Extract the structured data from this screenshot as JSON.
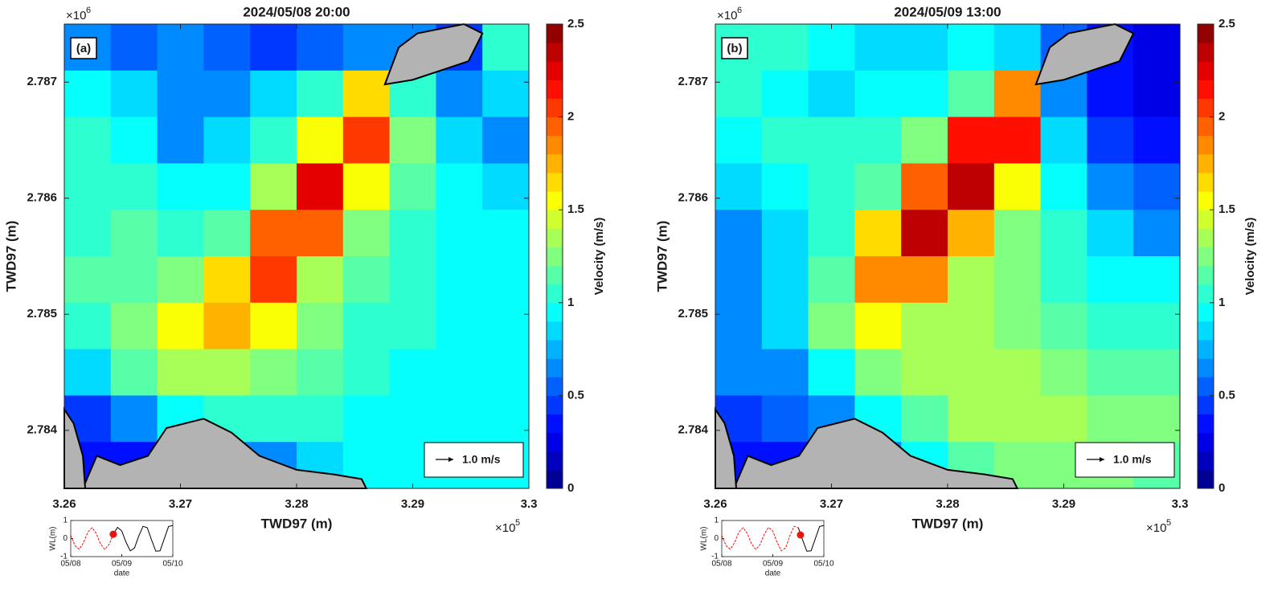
{
  "chart_data": [
    {
      "type": "heatmap",
      "title": "2024/05/08 20:00",
      "panel_label": "(a)",
      "x_label": "TWD97 (m)",
      "y_label": "TWD97 (m)",
      "xlim": [
        3.26,
        3.3
      ],
      "ylim": [
        2.7835,
        2.7875
      ],
      "xticks": [
        3.26,
        3.27,
        3.28,
        3.29,
        3.3
      ],
      "yticks": [
        2.784,
        2.785,
        2.786,
        2.787
      ],
      "x_multiplier": {
        "base": "×10",
        "exponent": "5"
      },
      "y_multiplier": {
        "base": "×10",
        "exponent": "6"
      },
      "colormap": "jet",
      "color_levels": 25,
      "land_color": "#b3b3b3",
      "z": [
        [
          0.6,
          0.5,
          0.6,
          0.5,
          0.4,
          0.5,
          0.7,
          0.6,
          0.4,
          1.0
        ],
        [
          0.9,
          0.8,
          0.6,
          0.7,
          0.8,
          1.0,
          1.6,
          1.0,
          0.6,
          0.8
        ],
        [
          1.0,
          0.9,
          0.7,
          0.8,
          1.0,
          1.5,
          2.0,
          1.2,
          0.8,
          0.7
        ],
        [
          1.0,
          1.0,
          0.9,
          0.9,
          1.3,
          2.2,
          1.5,
          1.1,
          0.9,
          0.8
        ],
        [
          1.0,
          1.1,
          1.0,
          1.1,
          1.9,
          1.9,
          1.2,
          1.0,
          0.9,
          0.9
        ],
        [
          1.1,
          1.1,
          1.2,
          1.6,
          2.0,
          1.4,
          1.1,
          1.0,
          0.9,
          0.9
        ],
        [
          1.0,
          1.2,
          1.5,
          1.7,
          1.5,
          1.2,
          1.0,
          1.0,
          0.9,
          0.9
        ],
        [
          0.8,
          1.1,
          1.3,
          1.3,
          1.2,
          1.1,
          1.0,
          0.9,
          0.9,
          0.9
        ],
        [
          0.4,
          0.7,
          0.9,
          1.0,
          1.0,
          1.0,
          0.9,
          0.9,
          0.9,
          0.9
        ],
        [
          0.3,
          0.3,
          0.5,
          0.6,
          0.7,
          0.8,
          0.9,
          0.9,
          0.9,
          0.9
        ]
      ],
      "colorbar": {
        "label": "Velocity (m/s)",
        "lim": [
          0,
          2.5
        ],
        "ticks": [
          0,
          0.5,
          1,
          1.5,
          2,
          2.5
        ]
      },
      "quiver_key": {
        "value": 1.0,
        "label": "1.0 m/s"
      },
      "inset": {
        "type": "line",
        "x_label": "date",
        "y_label": "WL(m)",
        "xlim": [
          0,
          2
        ],
        "ylim": [
          -1,
          1
        ],
        "xticks": [
          {
            "value": 0,
            "label": "05/08"
          },
          {
            "value": 1,
            "label": "05/09"
          },
          {
            "value": 2,
            "label": "05/10"
          }
        ],
        "yticks": [
          -1,
          0,
          1
        ],
        "x": [
          0,
          0.083,
          0.167,
          0.25,
          0.333,
          0.417,
          0.5,
          0.583,
          0.667,
          0.75,
          0.833,
          0.917,
          1,
          1.083,
          1.167,
          1.25,
          1.333,
          1.417,
          1.5,
          1.583,
          1.667,
          1.75,
          1.833,
          1.917,
          2
        ],
        "series": [
          {
            "color": "#e8140f",
            "values": [
              0.18,
              -0.39,
              -0.59,
              -0.23,
              0.35,
              0.6,
              0.29,
              -0.29,
              -0.6,
              -0.34,
              0.24,
              null,
              null,
              null,
              null,
              null,
              null,
              null,
              null,
              null,
              null,
              null,
              null,
              null,
              null
            ]
          },
          {
            "color": "#000000",
            "values": [
              null,
              null,
              null,
              null,
              null,
              null,
              null,
              null,
              null,
              null,
              0.24,
              0.62,
              0.42,
              -0.2,
              -0.68,
              -0.52,
              0.14,
              0.68,
              0.6,
              -0.07,
              -0.7,
              -0.68,
              -0.01,
              0.67,
              0.72
            ]
          }
        ],
        "marker": {
          "x": 0.833,
          "y": 0.24,
          "color": "#e8140f"
        }
      }
    },
    {
      "type": "heatmap",
      "title": "2024/05/09 13:00",
      "panel_label": "(b)",
      "x_label": "TWD97 (m)",
      "y_label": "TWD97 (m)",
      "xlim": [
        3.26,
        3.3
      ],
      "ylim": [
        2.7835,
        2.7875
      ],
      "xticks": [
        3.26,
        3.27,
        3.28,
        3.29,
        3.3
      ],
      "yticks": [
        2.784,
        2.785,
        2.786,
        2.787
      ],
      "x_multiplier": {
        "base": "×10",
        "exponent": "5"
      },
      "y_multiplier": {
        "base": "×10",
        "exponent": "6"
      },
      "colormap": "jet",
      "color_levels": 25,
      "land_color": "#b3b3b3",
      "z": [
        [
          1.0,
          1.0,
          0.9,
          0.8,
          0.8,
          0.9,
          0.8,
          0.5,
          0.3,
          0.2
        ],
        [
          1.0,
          0.9,
          0.8,
          0.9,
          0.9,
          1.1,
          1.8,
          0.6,
          0.3,
          0.2
        ],
        [
          0.9,
          1.0,
          1.0,
          1.0,
          1.2,
          2.1,
          2.1,
          0.8,
          0.4,
          0.3
        ],
        [
          0.8,
          0.9,
          1.0,
          1.1,
          1.9,
          2.3,
          1.5,
          0.9,
          0.6,
          0.5
        ],
        [
          0.7,
          0.8,
          1.0,
          1.6,
          2.3,
          1.7,
          1.2,
          1.0,
          0.8,
          0.7
        ],
        [
          0.6,
          0.8,
          1.1,
          1.8,
          1.8,
          1.4,
          1.2,
          1.0,
          0.9,
          0.9
        ],
        [
          0.6,
          0.8,
          1.2,
          1.5,
          1.4,
          1.3,
          1.2,
          1.1,
          1.0,
          1.0
        ],
        [
          0.6,
          0.7,
          0.9,
          1.2,
          1.3,
          1.3,
          1.3,
          1.2,
          1.1,
          1.1
        ],
        [
          0.4,
          0.5,
          0.7,
          0.9,
          1.1,
          1.3,
          1.3,
          1.3,
          1.2,
          1.2
        ],
        [
          0.3,
          0.3,
          0.5,
          0.6,
          0.9,
          1.1,
          1.2,
          1.2,
          1.2,
          1.1
        ]
      ],
      "colorbar": {
        "label": "Velocity (m/s)",
        "lim": [
          0,
          2.5
        ],
        "ticks": [
          0,
          0.5,
          1,
          1.5,
          2,
          2.5
        ]
      },
      "quiver_key": {
        "value": 1.0,
        "label": "1.0 m/s"
      },
      "inset": {
        "type": "line",
        "x_label": "date",
        "y_label": "WL(m)",
        "xlim": [
          0,
          2
        ],
        "ylim": [
          -1,
          1
        ],
        "xticks": [
          {
            "value": 0,
            "label": "05/08"
          },
          {
            "value": 1,
            "label": "05/09"
          },
          {
            "value": 2,
            "label": "05/10"
          }
        ],
        "yticks": [
          -1,
          0,
          1
        ],
        "x": [
          0,
          0.083,
          0.167,
          0.25,
          0.333,
          0.417,
          0.5,
          0.583,
          0.667,
          0.75,
          0.833,
          0.917,
          1,
          1.083,
          1.167,
          1.25,
          1.333,
          1.417,
          1.5,
          1.583,
          1.667,
          1.75,
          1.833,
          1.917,
          2
        ],
        "series": [
          {
            "color": "#e8140f",
            "values": [
              0.18,
              -0.39,
              -0.59,
              -0.23,
              0.35,
              0.6,
              0.29,
              -0.29,
              -0.6,
              -0.34,
              0.24,
              0.62,
              0.42,
              -0.2,
              -0.68,
              -0.52,
              0.14,
              0.68,
              0.6,
              null,
              null,
              null,
              null,
              null,
              null
            ]
          },
          {
            "color": "#000000",
            "values": [
              null,
              null,
              null,
              null,
              null,
              null,
              null,
              null,
              null,
              null,
              null,
              null,
              null,
              null,
              null,
              null,
              null,
              null,
              0.6,
              -0.07,
              -0.7,
              -0.68,
              -0.01,
              0.67,
              0.72
            ]
          }
        ],
        "marker": {
          "x": 1.542,
          "y": 0.2,
          "color": "#e8140f"
        }
      }
    }
  ]
}
